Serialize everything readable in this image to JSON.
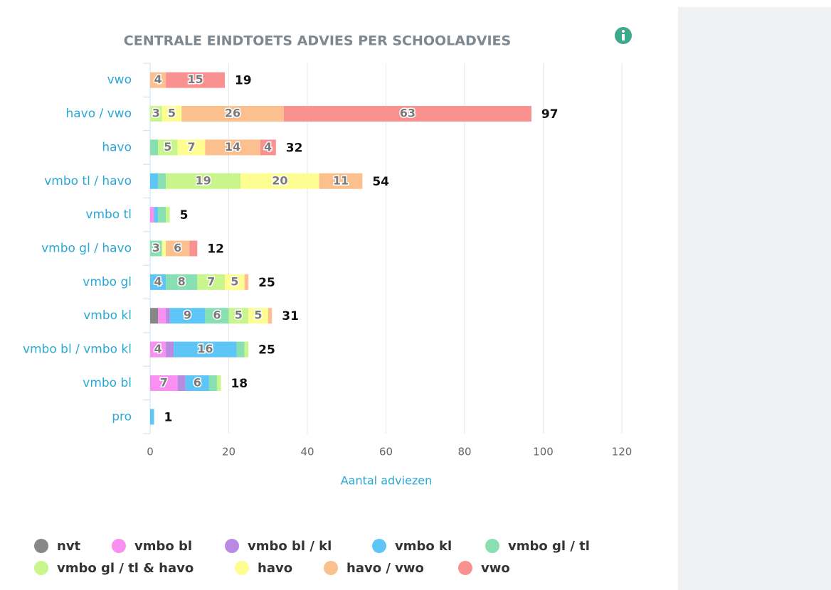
{
  "chart_data": {
    "type": "stacked-bar",
    "orientation": "horizontal",
    "title": "CENTRALE EINDTOETS ADVIES PER SCHOOLADVIES",
    "x_label": "Aantal adviezen",
    "categories": [
      "vwo",
      "havo / vwo",
      "havo",
      "vmbo tl / havo",
      "vmbo tl",
      "vmbo gl / havo",
      "vmbo gl",
      "vmbo kl",
      "vmbo bl / vmbo kl",
      "vmbo bl",
      "pro"
    ],
    "totals": [
      19,
      97,
      32,
      54,
      5,
      12,
      25,
      31,
      25,
      18,
      1
    ],
    "series": [
      {
        "name": "nvt",
        "color": "#878787",
        "values": [
          0,
          0,
          0,
          0,
          0,
          0,
          0,
          2,
          0,
          0,
          0
        ]
      },
      {
        "name": "vmbo bl",
        "color": "#f98ff1",
        "values": [
          0,
          0,
          0,
          0,
          1,
          0,
          0,
          2,
          4,
          7,
          0
        ]
      },
      {
        "name": "vmbo bl / kl",
        "color": "#b98ae2",
        "values": [
          0,
          0,
          0,
          0,
          0,
          0,
          0,
          1,
          2,
          2,
          0
        ]
      },
      {
        "name": "vmbo kl",
        "color": "#5ec6f6",
        "values": [
          0,
          0,
          0,
          2,
          1,
          0,
          4,
          9,
          16,
          6,
          1
        ]
      },
      {
        "name": "vmbo gl / tl",
        "color": "#88dfb2",
        "values": [
          0,
          0,
          2,
          2,
          2,
          3,
          8,
          6,
          2,
          2,
          0
        ]
      },
      {
        "name": "vmbo gl / tl & havo",
        "color": "#c9f68c",
        "values": [
          0,
          3,
          5,
          19,
          1,
          0,
          7,
          5,
          1,
          1,
          0
        ]
      },
      {
        "name": "havo",
        "color": "#fdfd91",
        "values": [
          0,
          5,
          7,
          20,
          0,
          1,
          5,
          5,
          0,
          0,
          0
        ]
      },
      {
        "name": "havo / vwo",
        "color": "#fbc08d",
        "values": [
          4,
          26,
          14,
          11,
          0,
          6,
          1,
          1,
          0,
          0,
          0
        ]
      },
      {
        "name": "vwo",
        "color": "#fa9191",
        "values": [
          15,
          63,
          4,
          0,
          0,
          2,
          0,
          0,
          0,
          0,
          0
        ]
      }
    ],
    "xlim": [
      0,
      120
    ],
    "xticks": [
      0,
      20,
      40,
      60,
      80,
      100,
      120
    ],
    "grid": true
  }
}
